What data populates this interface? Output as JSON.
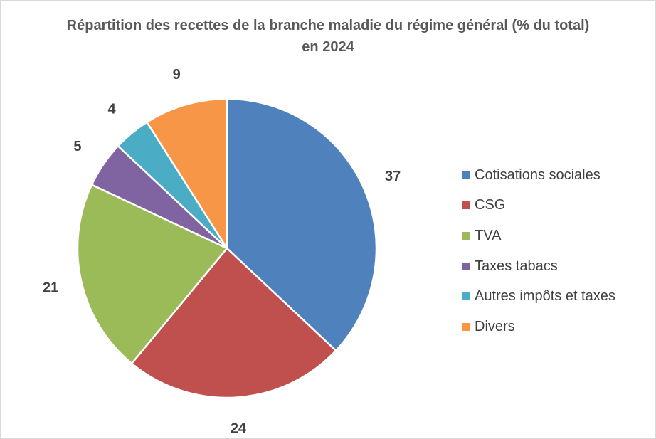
{
  "chart_data": {
    "type": "pie",
    "title": "Répartition des recettes de la branche maladie du régime général (% du total) en 2024",
    "legend_position": "right",
    "categories": [
      "Cotisations sociales",
      "CSG",
      "TVA",
      "Taxes tabacs",
      "Autres impôts et taxes",
      "Divers"
    ],
    "values": [
      37,
      24,
      21,
      5,
      4,
      9
    ],
    "colors": [
      "#4f81bd",
      "#c0504d",
      "#9bbb59",
      "#8064a2",
      "#4bacc6",
      "#f79646"
    ],
    "data_labels": [
      "37",
      "24",
      "21",
      "5",
      "4",
      "9"
    ]
  }
}
